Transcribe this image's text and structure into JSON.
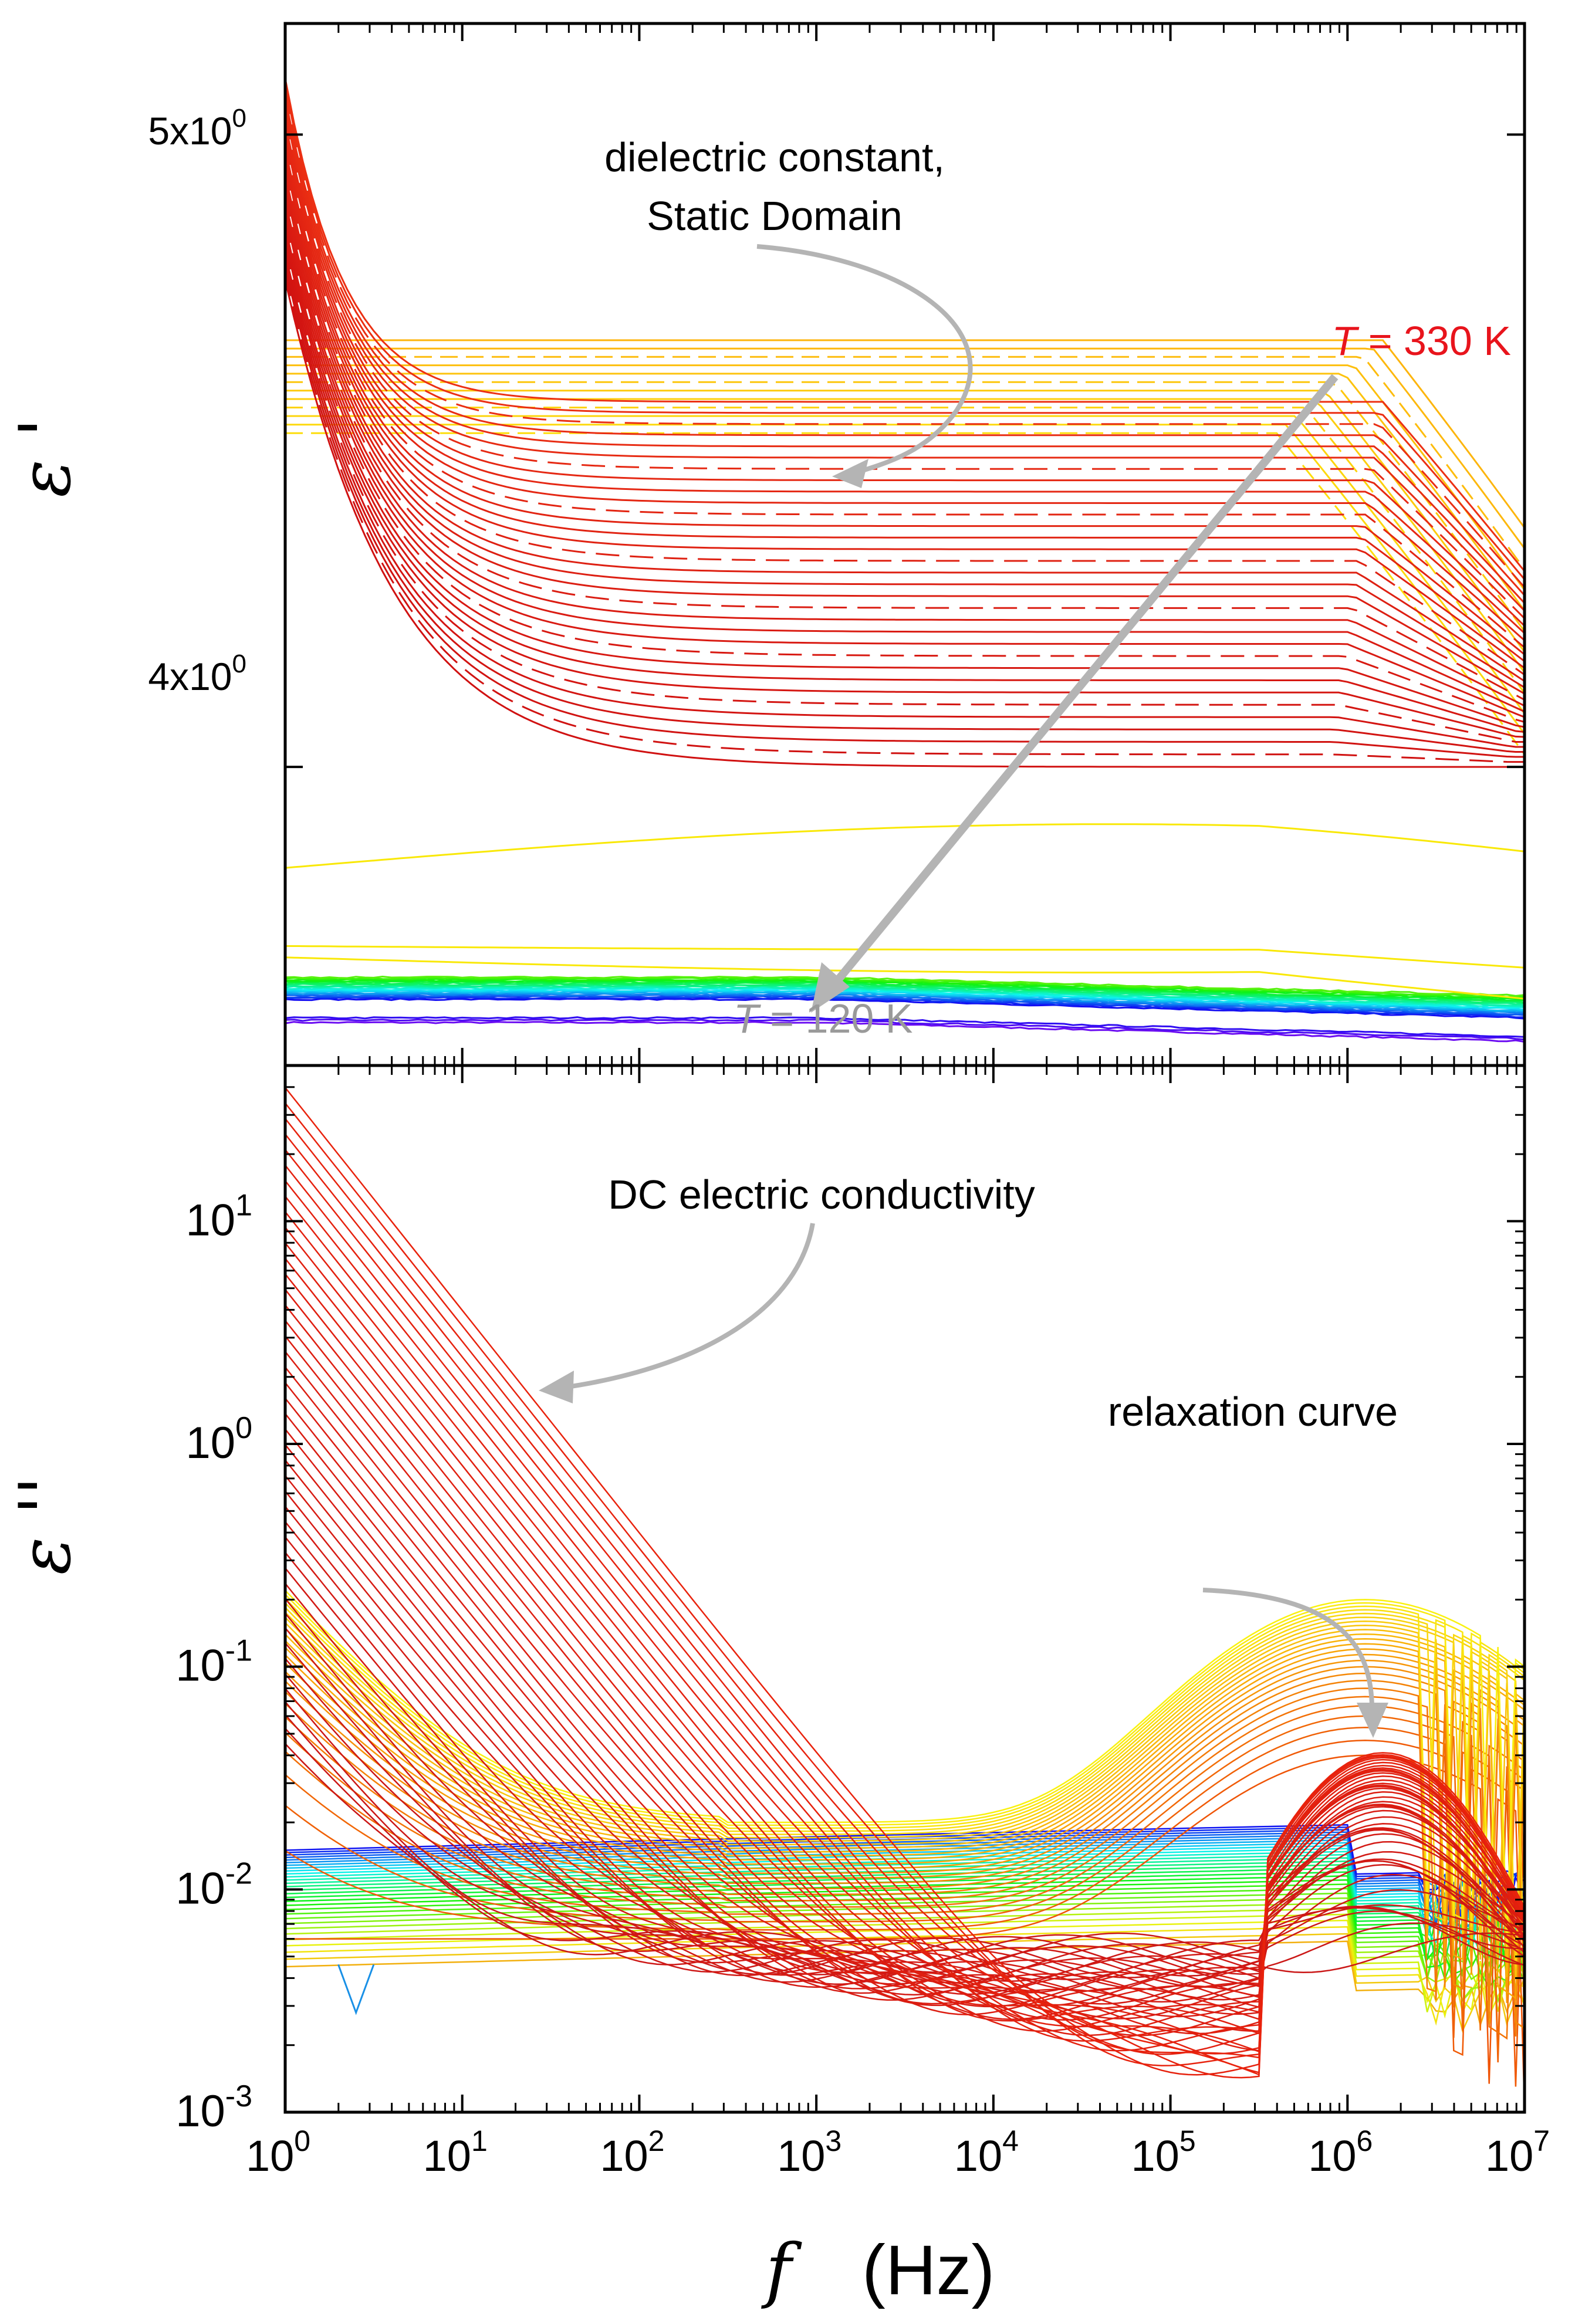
{
  "chart_data": [
    {
      "type": "line",
      "panel": "top",
      "ylabel": "ε '",
      "yscale": "log",
      "ylim": [
        3.6,
        5.2
      ],
      "xscale": "log",
      "xlim": [
        1,
        10000000
      ],
      "yticks": [
        {
          "value": 4.0,
          "base": "4x10",
          "exp": "0"
        },
        {
          "value": 5.0,
          "base": "5x10",
          "exp": "0"
        }
      ],
      "annotations": {
        "static": "dielectric constant,",
        "static2": "Static Domain",
        "t_hot_sym": "T",
        "t_hot_rest": " = 330 K",
        "t_cold_sym": "T",
        "t_cold_rest": " = 120 K"
      },
      "series_groups": [
        {
          "name": "high-T hot (red)",
          "count": 30,
          "level_range": [
            4.0,
            4.55
          ],
          "low_f_rise_to": 5.1,
          "hf_drop_to": 4.0
        },
        {
          "name": "high-T (orange-yellow)",
          "count": 12,
          "level_range": [
            4.4,
            4.65
          ],
          "hf_drop_to": 3.95
        },
        {
          "name": "transition (yellow)",
          "count": 3,
          "level_range": [
            3.78,
            3.95
          ],
          "hf_drop_to": 3.72
        },
        {
          "name": "low-T (green-blue-purple)",
          "count": 22,
          "level_range": [
            3.66,
            3.71
          ],
          "hf_drop_to": 3.65
        }
      ]
    },
    {
      "type": "line",
      "panel": "bottom",
      "ylabel": "ε ''",
      "yscale": "log",
      "ylim": [
        0.001,
        50
      ],
      "xscale": "log",
      "xlim": [
        1,
        10000000
      ],
      "xlabel_sym": "f",
      "xlabel": "(Hz)",
      "yticks": [
        {
          "value": 0.001,
          "base": "10",
          "exp": "-3"
        },
        {
          "value": 0.01,
          "base": "10",
          "exp": "-2"
        },
        {
          "value": 0.1,
          "base": "10",
          "exp": "-1"
        },
        {
          "value": 1,
          "base": "10",
          "exp": "0"
        },
        {
          "value": 10,
          "base": "10",
          "exp": "1"
        }
      ],
      "xticks": [
        {
          "value": 1,
          "base": "10",
          "exp": "0"
        },
        {
          "value": 10,
          "base": "10",
          "exp": "1"
        },
        {
          "value": 100,
          "base": "10",
          "exp": "2"
        },
        {
          "value": 1000,
          "base": "10",
          "exp": "3"
        },
        {
          "value": 10000,
          "base": "10",
          "exp": "4"
        },
        {
          "value": 100000,
          "base": "10",
          "exp": "5"
        },
        {
          "value": 1000000,
          "base": "10",
          "exp": "6"
        },
        {
          "value": 10000000,
          "base": "10",
          "exp": "7"
        }
      ],
      "annotations": {
        "dc": "DC electric conductivity",
        "relax": "relaxation curve"
      },
      "series_groups": [
        {
          "name": "conductivity (red, slope -1)",
          "count": 40,
          "value_at_1Hz_range": [
            0.05,
            40
          ],
          "floor_range": [
            0.0013,
            0.006
          ]
        },
        {
          "name": "relaxation (yellow-orange)",
          "count": 25,
          "peak_near_Hz": 1500000,
          "peak_value": 0.2,
          "plateau_range": [
            0.006,
            0.02
          ]
        },
        {
          "name": "low-T baseline (green-blue-purple)",
          "count": 30,
          "plateau_range": [
            0.0045,
            0.015
          ]
        }
      ]
    }
  ],
  "colors": {
    "axis": "#000000",
    "annotation_arrow": "#b4b4b4",
    "hot_label": "#e8141c",
    "cold_label": "#9a9a9a",
    "palette_hot": "#c81414",
    "palette_cold": "#5a1ec8"
  }
}
